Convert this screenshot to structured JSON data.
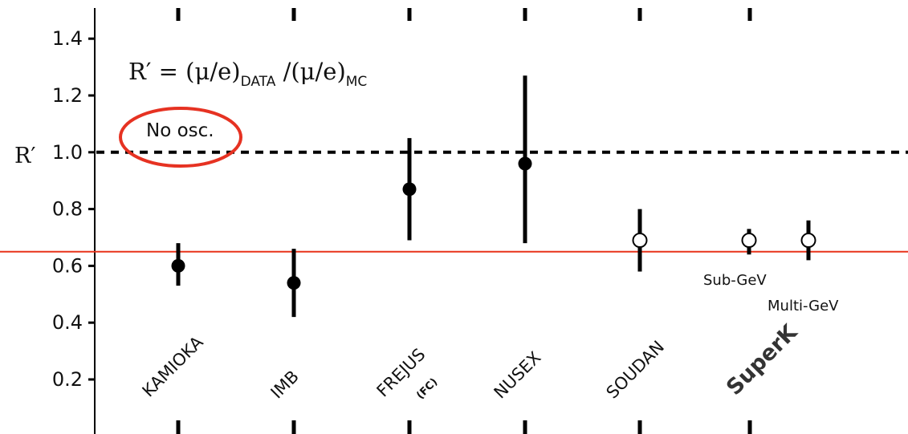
{
  "chart_data": {
    "type": "scatter",
    "ylabel": "R′",
    "ylim": [
      0.0,
      1.5
    ],
    "yticks": [
      0.2,
      0.4,
      0.6,
      0.8,
      1.0,
      1.2,
      1.4
    ],
    "ytick_labels": [
      "0.2",
      "0.4",
      "0.6",
      "0.8",
      "1.0",
      "1.2",
      "1.4"
    ],
    "formula": {
      "lhs": "R′ = (μ/e)",
      "data_sub": "DATA",
      "mid": " /(μ/e)",
      "mc_sub": "MC"
    },
    "categories": [
      "KAMIOKA",
      "IMB",
      "FREJUS",
      "NUSEX",
      "SOUDAN",
      "SuperK"
    ],
    "category_notes": {
      "FREJUS": "(FC)"
    },
    "points": [
      {
        "experiment": "KAMIOKA",
        "value": 0.6,
        "err_low": 0.53,
        "err_high": 0.68,
        "marker": "filled"
      },
      {
        "experiment": "IMB",
        "value": 0.54,
        "err_low": 0.42,
        "err_high": 0.66,
        "marker": "filled"
      },
      {
        "experiment": "FREJUS",
        "value": 0.87,
        "err_low": 0.69,
        "err_high": 1.05,
        "marker": "filled"
      },
      {
        "experiment": "NUSEX",
        "value": 0.96,
        "err_low": 0.68,
        "err_high": 1.27,
        "marker": "filled"
      },
      {
        "experiment": "SOUDAN",
        "value": 0.69,
        "err_low": 0.58,
        "err_high": 0.8,
        "marker": "open"
      },
      {
        "experiment": "SuperK",
        "label": "Sub-GeV",
        "value": 0.69,
        "err_low": 0.64,
        "err_high": 0.73,
        "marker": "open"
      },
      {
        "experiment": "SuperK",
        "label": "Multi-GeV",
        "value": 0.69,
        "err_low": 0.62,
        "err_high": 0.76,
        "marker": "open"
      }
    ],
    "reference_lines": [
      {
        "value": 1.0,
        "style": "dashed",
        "color": "#000000",
        "label": "No osc."
      },
      {
        "value": 0.65,
        "style": "solid",
        "color": "#e8331a"
      }
    ],
    "annotations": [
      {
        "text": "No osc.",
        "highlight": "ellipse",
        "highlight_color": "#e63222"
      }
    ],
    "grid": false
  }
}
